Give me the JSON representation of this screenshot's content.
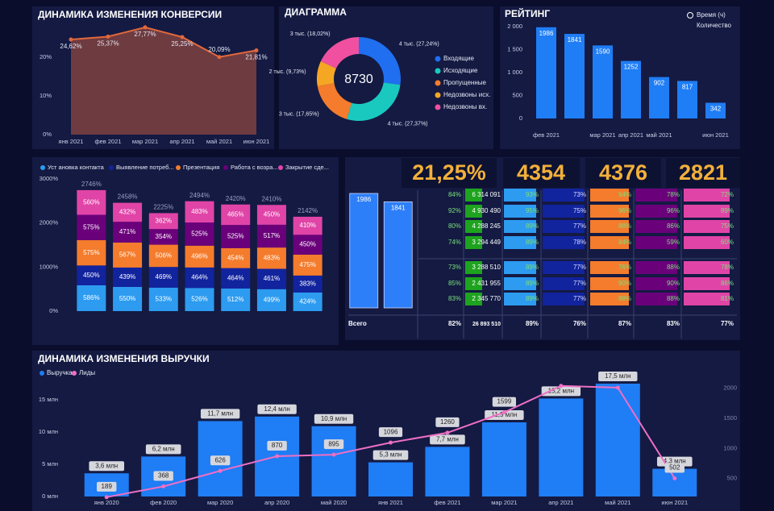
{
  "chart_data": [
    {
      "type": "area",
      "title": "ДИНАМИКА ИЗМЕНЕНИЯ КОНВЕРСИИ",
      "categories": [
        "янв 2021",
        "фев 2021",
        "мар 2021",
        "апр 2021",
        "май 2021",
        "июн 2021"
      ],
      "values": [
        24.62,
        25.37,
        27.77,
        25.25,
        20.09,
        21.81
      ],
      "value_labels": [
        "24,62%",
        "25,37%",
        "27,77%",
        "25,25%",
        "20,09%",
        "21,81%"
      ],
      "color": "#e0683c",
      "fill": "#6e3b40",
      "ylim": [
        0,
        29
      ],
      "yticks": [
        {
          "value": 0,
          "label": "0%"
        },
        {
          "value": 10,
          "label": "10%"
        },
        {
          "value": 20,
          "label": "20%"
        }
      ]
    },
    {
      "type": "pie",
      "title": "ДИАГРАММА",
      "center_label": "8730",
      "categories": [
        "Входящие",
        "Исходящие",
        "Пропущенные",
        "Недозвоны исх.",
        "Недозвоны вх."
      ],
      "values": [
        27.24,
        27.37,
        17.65,
        9.73,
        18.02
      ],
      "value_labels": [
        "4 тыс. (27,24%)",
        "4 тыс. (27,37%)",
        "3 тыс. (17,65%)",
        "2 тыс. (9,73%)",
        "3 тыс. (18,02%)"
      ],
      "colors": [
        "#1f6ff0",
        "#19c9c0",
        "#f47c2c",
        "#f5a623",
        "#f0509f"
      ]
    },
    {
      "type": "bar",
      "title": "РЕЙТИНГ",
      "legend": [
        "Время (ч)",
        "Количество"
      ],
      "categories": [
        "фев 2021",
        null,
        "мар 2021",
        "апр 2021",
        "май 2021",
        null,
        "июн 2021"
      ],
      "values": [
        1986,
        1841,
        1590,
        1252,
        902,
        817,
        342
      ],
      "color": "#1f7df5",
      "ylim": [
        0,
        2000
      ],
      "yticks": [
        0,
        500,
        {
          "value": 1000,
          "label": "1 000"
        },
        {
          "value": 1500,
          "label": "1 500"
        },
        {
          "value": 2000,
          "label": "2 000"
        }
      ]
    },
    {
      "type": "stacked_bar",
      "categories": [
        null,
        null,
        null,
        null,
        null,
        null,
        null
      ],
      "series": [
        {
          "name": "Уст ановка контакта",
          "color": "#2d9bf0",
          "values": [
            586,
            550,
            533,
            526,
            512,
            499,
            424
          ],
          "value_labels": [
            "586%",
            "550%",
            "533%",
            "526%",
            "512%",
            "499%",
            "424%"
          ]
        },
        {
          "name": "Выявление потреб...",
          "color": "#12239e",
          "values": [
            450,
            439,
            469,
            464,
            464,
            461,
            383
          ],
          "value_labels": [
            "450%",
            "439%",
            "469%",
            "464%",
            "464%",
            "461%",
            "383%"
          ]
        },
        {
          "name": "Презентация",
          "color": "#f47c2c",
          "values": [
            575,
            567,
            506,
            496,
            454,
            483,
            475
          ],
          "value_labels": [
            "575%",
            "567%",
            "506%",
            "496%",
            "454%",
            "483%",
            "475%"
          ]
        },
        {
          "name": "Работа с возра...",
          "color": "#6b007b",
          "values": [
            575,
            471,
            354,
            525,
            525,
            517,
            450
          ],
          "value_labels": [
            "575%",
            "471%",
            "354%",
            "525%",
            "525%",
            "517%",
            "450%"
          ]
        },
        {
          "name": "Закрытие сде...",
          "color": "#e044a7",
          "values": [
            560,
            432,
            362,
            483,
            465,
            450,
            410
          ],
          "value_labels": [
            "560%",
            "432%",
            "362%",
            "483%",
            "465%",
            "450%",
            "410%"
          ]
        }
      ],
      "total_labels": [
        "2746%",
        "2458%",
        "2225%",
        "2494%",
        "2420%",
        "2410%",
        "2142%"
      ],
      "ylim": [
        0,
        3000
      ],
      "yticks": [
        {
          "value": 0,
          "label": "0%"
        },
        {
          "value": 1000,
          "label": "1000%"
        },
        {
          "value": 2000,
          "label": "2000%"
        },
        {
          "value": 3000,
          "label": "3000%"
        }
      ]
    },
    {
      "type": "bar",
      "values": [
        1986,
        1841
      ],
      "color": "#2d7ff9",
      "ylim": [
        0,
        2000
      ]
    },
    {
      "type": "combo",
      "title": "ДИНАМИКА ИЗМЕНЕНИЯ ВЫРУЧКИ",
      "categories": [
        "янв 2020",
        "фев 2020",
        "мар 2020",
        "апр 2020",
        "май 2020",
        "янв 2021",
        "фев 2021",
        "мар 2021",
        "апр 2021",
        "май 2021",
        "июн 2021"
      ],
      "series": [
        {
          "name": "Выручка",
          "type": "bar",
          "color": "#1f7df5",
          "values": [
            3.6,
            6.2,
            11.7,
            12.4,
            10.9,
            5.3,
            7.7,
            11.5,
            15.2,
            17.5,
            4.3
          ],
          "value_labels": [
            "3,6 млн",
            "6,2 млн",
            "11,7 млн",
            "12,4 млн",
            "10,9 млн",
            "5,3 млн",
            "7,7 млн",
            "11,5 млн",
            "15,2 млн",
            "17,5 млн",
            "4,3 млн"
          ]
        },
        {
          "name": "Лиды",
          "type": "line",
          "axis": "y2",
          "color": "#ee6fc5",
          "values": [
            189,
            368,
            626,
            870,
            895,
            1096,
            1260,
            1599,
            2040,
            2010,
            502
          ],
          "value_labels": [
            "189",
            "368",
            "626",
            "870",
            "895",
            "1096",
            "1260",
            "1599",
            null,
            null,
            "502"
          ]
        }
      ],
      "ylim": [
        0,
        18
      ],
      "yticks": [
        {
          "value": 0,
          "label": "0 млн"
        },
        {
          "value": 5,
          "label": "5 млн"
        },
        {
          "value": 10,
          "label": "10 млн"
        },
        {
          "value": 15,
          "label": "15 млн"
        }
      ],
      "y2lim": [
        200,
        2130
      ],
      "y2ticks": [
        500,
        1000,
        1500,
        2000
      ]
    }
  ],
  "kpis": [
    "21,25%",
    "4354",
    "4376",
    "2821"
  ],
  "table": {
    "rows": [
      [
        "84%",
        "6 314 091",
        "93%",
        "73%",
        "94%",
        "78%",
        "72%"
      ],
      [
        "92%",
        "4 930 490",
        "95%",
        "75%",
        "96%",
        "96%",
        "89%"
      ],
      [
        "80%",
        "4 288 245",
        "89%",
        "77%",
        "88%",
        "86%",
        "75%"
      ],
      [
        "74%",
        "3 294 449",
        "89%",
        "78%",
        "84%",
        "59%",
        "60%"
      ],
      [
        "73%",
        "3 288 510",
        "89%",
        "77%",
        "76%",
        "88%",
        "78%"
      ],
      [
        "85%",
        "2 431 955",
        "89%",
        "77%",
        "90%",
        "90%",
        "86%"
      ],
      [
        "83%",
        "2 345 770",
        "89%",
        "77%",
        "88%",
        "88%",
        "81%"
      ]
    ],
    "total": [
      "Всего",
      "82%",
      "26 893 510",
      "89%",
      "76%",
      "87%",
      "83%",
      "77%"
    ]
  }
}
